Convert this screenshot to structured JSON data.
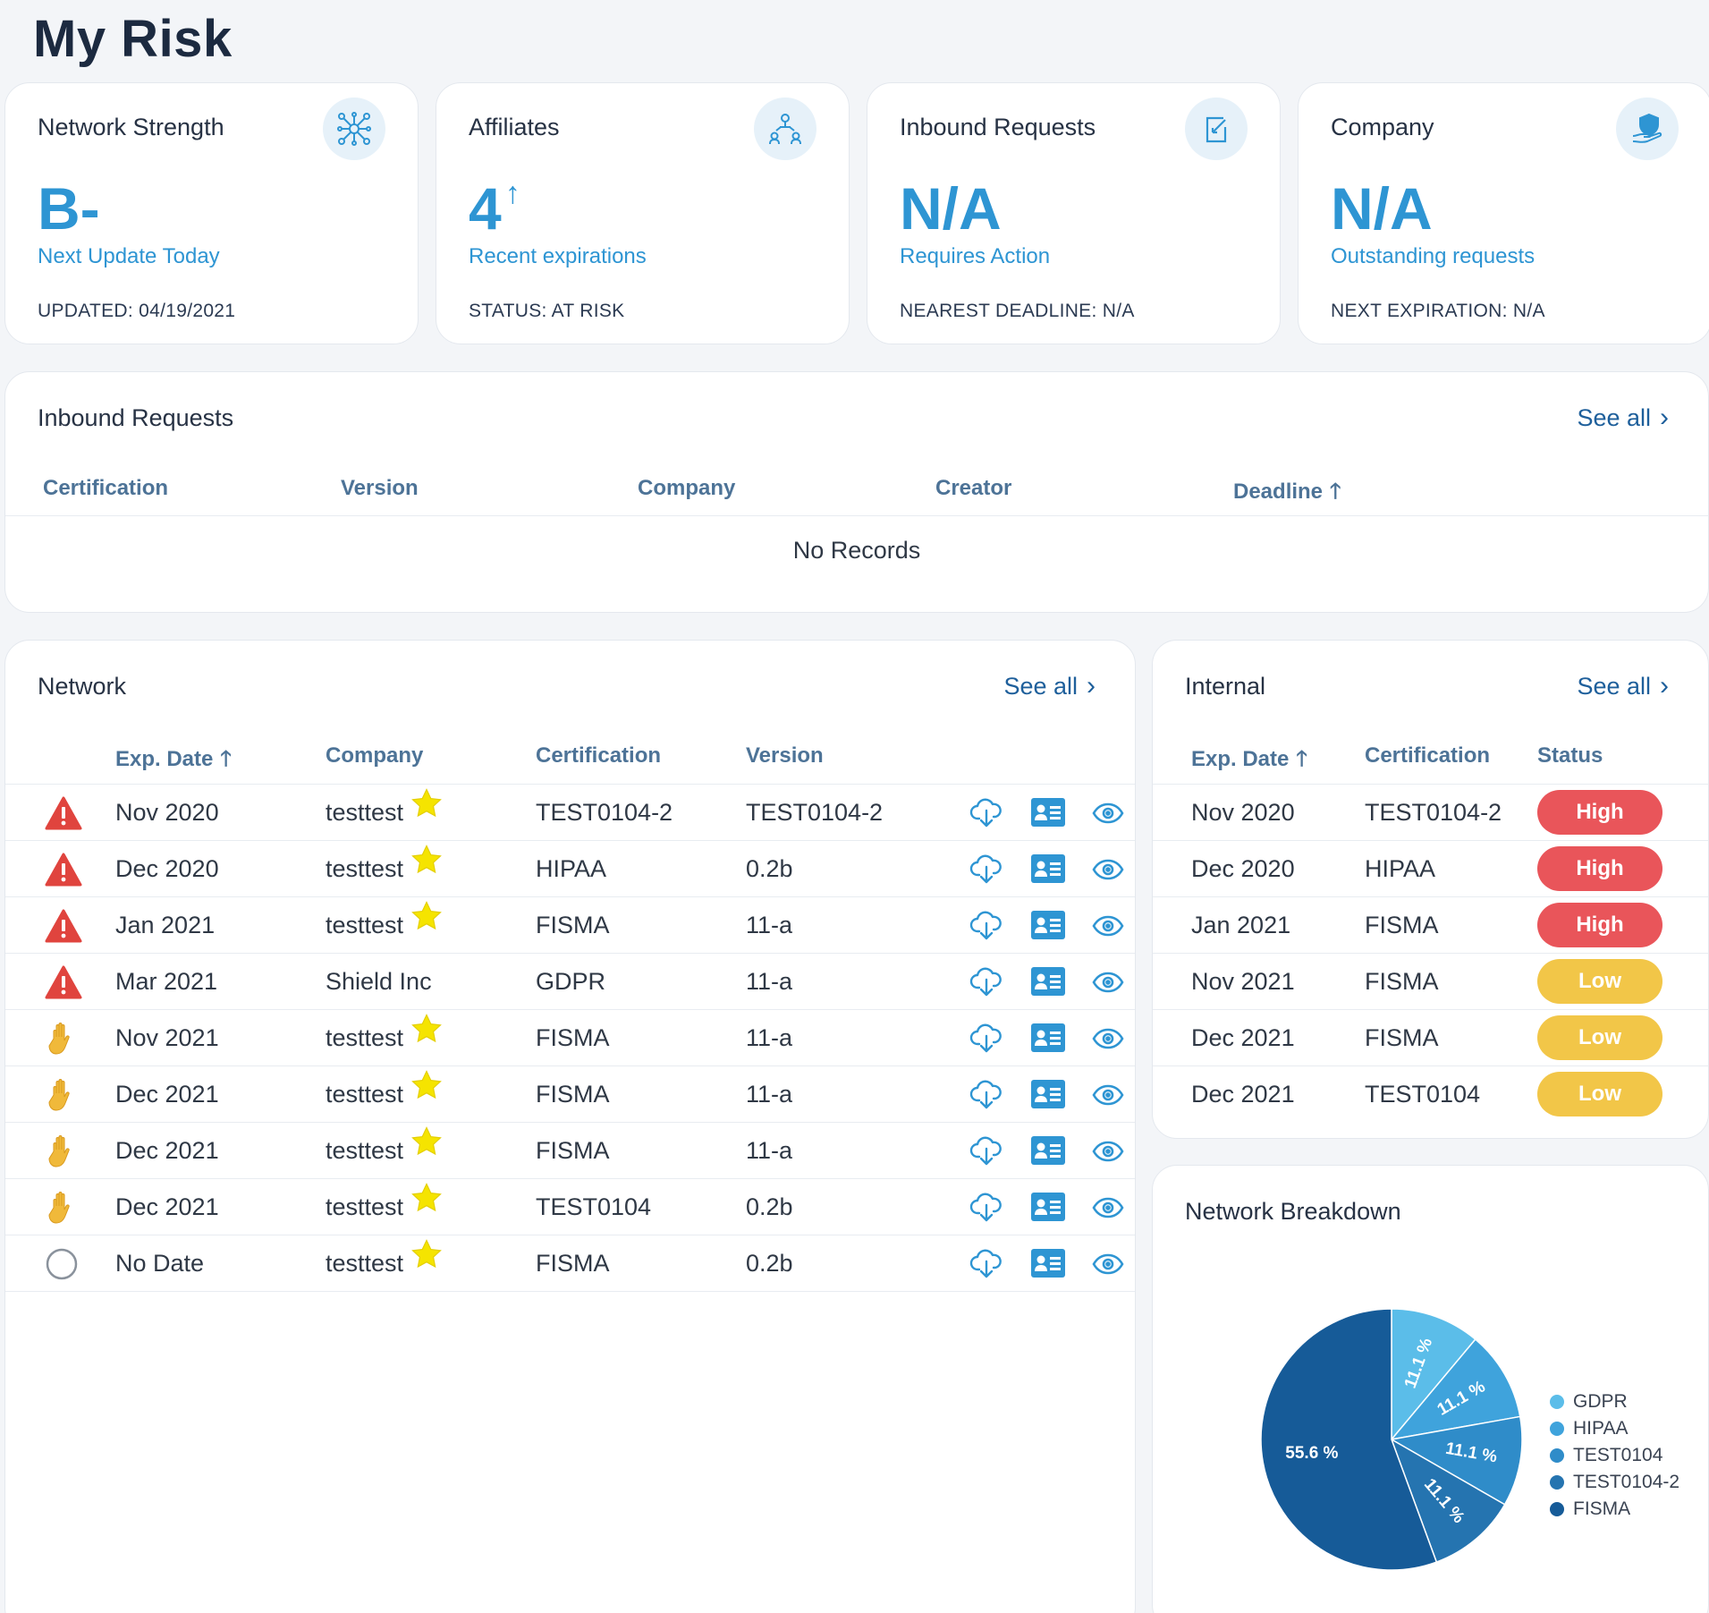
{
  "page": {
    "title": "My Risk"
  },
  "kpis": [
    {
      "title": "Network Strength",
      "value": "B-",
      "value_sup": "",
      "sub": "Next Update Today",
      "foot": "UPDATED: 04/19/2021",
      "icon": "network-icon"
    },
    {
      "title": "Affiliates",
      "value": "4",
      "value_sup": "↑",
      "sub": "Recent expirations",
      "foot": "STATUS: AT RISK",
      "icon": "affiliates-icon"
    },
    {
      "title": "Inbound Requests",
      "value": "N/A",
      "value_sup": "",
      "sub": "Requires Action",
      "foot": "NEAREST DEADLINE: N/A",
      "icon": "document-edit-icon"
    },
    {
      "title": "Company",
      "value": "N/A",
      "value_sup": "",
      "sub": "Outstanding requests",
      "foot": "NEXT EXPIRATION: N/A",
      "icon": "shield-hand-icon"
    }
  ],
  "inbound": {
    "title": "Inbound Requests",
    "see_all": "See all",
    "columns": [
      "Certification",
      "Version",
      "Company",
      "Creator",
      "Deadline"
    ],
    "empty": "No Records"
  },
  "network": {
    "title": "Network",
    "see_all": "See all",
    "columns": [
      "Exp. Date",
      "Company",
      "Certification",
      "Version"
    ],
    "rows": [
      {
        "status": "warning",
        "date": "Nov 2020",
        "company": "testtest",
        "star": true,
        "cert": "TEST0104-2",
        "version": "TEST0104-2"
      },
      {
        "status": "warning",
        "date": "Dec 2020",
        "company": "testtest",
        "star": true,
        "cert": "HIPAA",
        "version": "0.2b"
      },
      {
        "status": "warning",
        "date": "Jan 2021",
        "company": "testtest",
        "star": true,
        "cert": "FISMA",
        "version": "11-a"
      },
      {
        "status": "warning",
        "date": "Mar 2021",
        "company": "Shield Inc",
        "star": false,
        "cert": "GDPR",
        "version": "11-a"
      },
      {
        "status": "hand",
        "date": "Nov 2021",
        "company": "testtest",
        "star": true,
        "cert": "FISMA",
        "version": "11-a"
      },
      {
        "status": "hand",
        "date": "Dec 2021",
        "company": "testtest",
        "star": true,
        "cert": "FISMA",
        "version": "11-a"
      },
      {
        "status": "hand",
        "date": "Dec 2021",
        "company": "testtest",
        "star": true,
        "cert": "FISMA",
        "version": "11-a"
      },
      {
        "status": "hand",
        "date": "Dec 2021",
        "company": "testtest",
        "star": true,
        "cert": "TEST0104",
        "version": "0.2b"
      },
      {
        "status": "circle",
        "date": "No Date",
        "company": "testtest",
        "star": true,
        "cert": "FISMA",
        "version": "0.2b"
      }
    ]
  },
  "internal": {
    "title": "Internal",
    "see_all": "See all",
    "columns": [
      "Exp. Date",
      "Certification",
      "Status"
    ],
    "rows": [
      {
        "date": "Nov 2020",
        "cert": "TEST0104-2",
        "status": "High",
        "level": "high"
      },
      {
        "date": "Dec 2020",
        "cert": "HIPAA",
        "status": "High",
        "level": "high"
      },
      {
        "date": "Jan 2021",
        "cert": "FISMA",
        "status": "High",
        "level": "high"
      },
      {
        "date": "Nov 2021",
        "cert": "FISMA",
        "status": "Low",
        "level": "low"
      },
      {
        "date": "Dec 2021",
        "cert": "FISMA",
        "status": "Low",
        "level": "low"
      },
      {
        "date": "Dec 2021",
        "cert": "TEST0104",
        "status": "Low",
        "level": "low"
      }
    ]
  },
  "breakdown": {
    "title": "Network Breakdown"
  },
  "chart_data": {
    "type": "pie",
    "title": "Network Breakdown",
    "categories": [
      "GDPR",
      "HIPAA",
      "TEST0104",
      "TEST0104-2",
      "FISMA"
    ],
    "values": [
      11.1,
      11.1,
      11.1,
      11.1,
      55.6
    ],
    "labels": [
      "11.1 %",
      "11.1 %",
      "11.1 %",
      "11.1 %",
      "55.6 %"
    ],
    "colors": [
      "#5bbde9",
      "#3fa3dc",
      "#2f8cc9",
      "#2574b0",
      "#165b98"
    ],
    "legend": "right"
  }
}
